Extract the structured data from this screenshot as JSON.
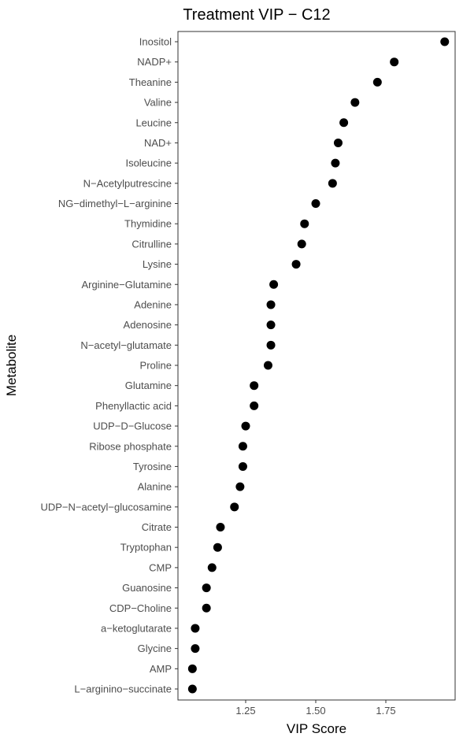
{
  "chart_data": {
    "type": "scatter",
    "title": "Treatment VIP − C12",
    "xlabel": "VIP Score",
    "ylabel": "Metabolite",
    "xlim": [
      1.035,
      1.985
    ],
    "xticks": [
      1.25,
      1.5,
      1.75
    ],
    "xtick_labels": [
      "1.25",
      "1.50",
      "1.75"
    ],
    "grid": false,
    "legend": "none",
    "point_color": "#000000",
    "categories": [
      "Inositol",
      "NADP+",
      "Theanine",
      "Valine",
      "Leucine",
      "NAD+",
      "Isoleucine",
      "N−Acetylputrescine",
      "NG−dimethyl−L−arginine",
      "Thymidine",
      "Citrulline",
      "Lysine",
      "Arginine−Glutamine",
      "Adenine",
      "Adenosine",
      "N−acetyl−glutamate",
      "Proline",
      "Glutamine",
      "Phenyllactic acid",
      "UDP−D−Glucose",
      "Ribose phosphate",
      "Tyrosine",
      "Alanine",
      "UDP−N−acetyl−glucosamine",
      "Citrate",
      "Tryptophan",
      "CMP",
      "Guanosine",
      "CDP−Choline",
      "a−ketoglutarate",
      "Glycine",
      "AMP",
      "L−arginino−succinate"
    ],
    "values": [
      1.96,
      1.78,
      1.72,
      1.64,
      1.6,
      1.58,
      1.57,
      1.56,
      1.5,
      1.46,
      1.45,
      1.43,
      1.35,
      1.34,
      1.34,
      1.34,
      1.33,
      1.28,
      1.28,
      1.25,
      1.24,
      1.24,
      1.23,
      1.21,
      1.16,
      1.15,
      1.13,
      1.11,
      1.11,
      1.07,
      1.07,
      1.06,
      1.06
    ]
  }
}
